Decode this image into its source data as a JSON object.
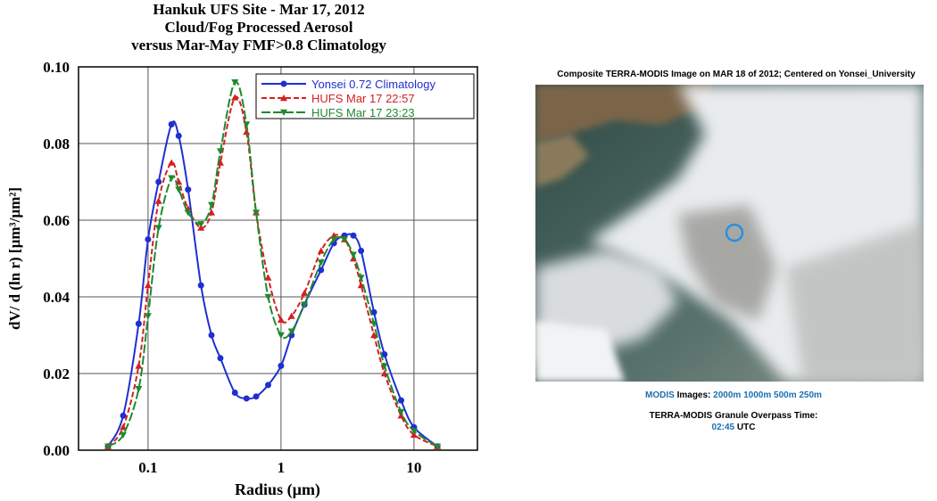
{
  "chart_data": {
    "type": "line",
    "title": [
      "Hankuk UFS Site - Mar 17, 2012",
      "Cloud/Fog Processed Aerosol",
      "versus Mar-May FMF>0.8 Climatology"
    ],
    "x_label": "Radius (µm)",
    "y_label": "dV/ d (ln r)  [µm³/µm²]",
    "xscale": "log",
    "xlim": [
      0.03,
      30
    ],
    "xticks": [
      0.1,
      1,
      10
    ],
    "ylim": [
      0,
      0.1
    ],
    "yticks": [
      {
        "value": 0,
        "label": "0.00"
      },
      {
        "value": 0.02,
        "label": "0.02"
      },
      {
        "value": 0.04,
        "label": "0.04"
      },
      {
        "value": 0.06,
        "label": "0.06"
      },
      {
        "value": 0.08,
        "label": "0.08"
      },
      {
        "value": 0.1,
        "label": "0.10"
      }
    ],
    "grid": true,
    "legend": "upper right",
    "x": [
      0.05,
      0.065,
      0.085,
      0.1,
      0.12,
      0.15,
      0.17,
      0.2,
      0.25,
      0.3,
      0.35,
      0.45,
      0.55,
      0.65,
      0.8,
      1,
      1.2,
      1.5,
      2,
      2.5,
      3,
      3.5,
      4,
      5,
      6,
      8,
      10,
      15
    ],
    "series": [
      {
        "name": "Yonsei 0.72 Climatology",
        "color": "#1f2fd0",
        "marker": "circle",
        "dash": "solid",
        "values": [
          0.001,
          0.009,
          0.033,
          0.055,
          0.07,
          0.085,
          0.082,
          0.068,
          0.043,
          0.03,
          0.024,
          0.015,
          0.0135,
          0.014,
          0.017,
          0.022,
          0.03,
          0.038,
          0.047,
          0.054,
          0.056,
          0.056,
          0.052,
          0.036,
          0.025,
          0.013,
          0.006,
          0.001
        ]
      },
      {
        "name": "HUFS Mar 17 22:57",
        "color": "#d42020",
        "marker": "triangle",
        "dash": "dashed",
        "values": [
          0.001,
          0.006,
          0.022,
          0.043,
          0.065,
          0.075,
          0.07,
          0.063,
          0.058,
          0.062,
          0.075,
          0.092,
          0.083,
          0.062,
          0.045,
          0.034,
          0.035,
          0.041,
          0.052,
          0.056,
          0.055,
          0.05,
          0.043,
          0.03,
          0.02,
          0.009,
          0.004,
          0.001
        ]
      },
      {
        "name": "HUFS Mar 17 23:23",
        "color": "#1e8a2e",
        "marker": "triangle-down",
        "dash": "long-dashed",
        "values": [
          0.001,
          0.004,
          0.016,
          0.035,
          0.058,
          0.071,
          0.068,
          0.062,
          0.059,
          0.064,
          0.078,
          0.096,
          0.085,
          0.062,
          0.04,
          0.03,
          0.031,
          0.038,
          0.049,
          0.055,
          0.055,
          0.051,
          0.045,
          0.033,
          0.022,
          0.01,
          0.005,
          0.001
        ]
      }
    ]
  },
  "image_panel": {
    "title": "Composite TERRA-MODIS Image on MAR 18 of 2012; Centered on Yonsei_University",
    "images_source": "MODIS",
    "images_word": "Images:",
    "resolutions": [
      "2000m",
      "1000m",
      "500m",
      "250m"
    ],
    "overpass_label": "TERRA-MODIS Granule Overpass Time:",
    "overpass_time": "02:45",
    "overpass_zone": "UTC"
  }
}
